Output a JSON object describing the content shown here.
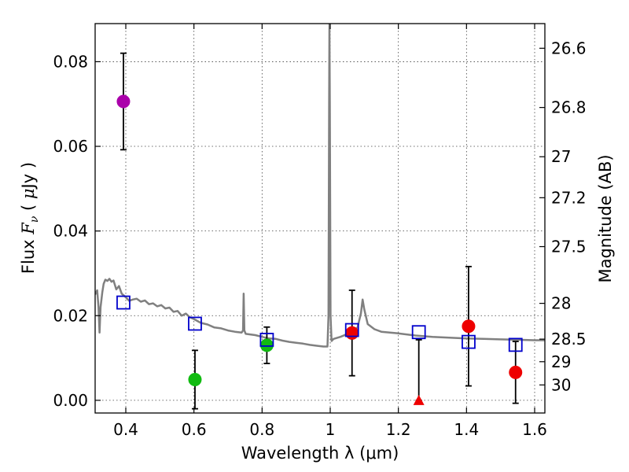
{
  "chart_data": {
    "type": "scatter",
    "xlabel": "Wavelength  λ (μm)",
    "ylabel": "Flux  F_ν  ( μJy )",
    "y2label": "Magnitude (AB)",
    "xlim": [
      0.31,
      1.63
    ],
    "ylim": [
      -0.003,
      0.089
    ],
    "x_ticks": [
      0.4,
      0.6,
      0.8,
      1.0,
      1.2,
      1.4,
      1.6
    ],
    "x_tick_labels": [
      "0.4",
      "0.6",
      "0.8",
      "1",
      "1.2",
      "1.4",
      "1.6"
    ],
    "y_ticks": [
      0.0,
      0.02,
      0.04,
      0.06,
      0.08
    ],
    "y_tick_labels": [
      "0.00",
      "0.02",
      "0.04",
      "0.06",
      "0.08"
    ],
    "y2_ticks": [
      {
        "label": "26.6",
        "mag": 26.6
      },
      {
        "label": "26.8",
        "mag": 26.8
      },
      {
        "label": "27",
        "mag": 27.0
      },
      {
        "label": "27.2",
        "mag": 27.2
      },
      {
        "label": "27.5",
        "mag": 27.5
      },
      {
        "label": "28",
        "mag": 28.0
      },
      {
        "label": "28.5",
        "mag": 28.5
      },
      {
        "label": "29",
        "mag": 29.0
      },
      {
        "label": "30",
        "mag": 30.0
      }
    ],
    "grid": true,
    "colors": {
      "magenta": "#aa00aa",
      "green": "#11bb11",
      "red": "#ee0000",
      "model": "#808080",
      "model_photometry": "#0000cc",
      "errorbar": "#000000"
    },
    "series": [
      {
        "name": "observed photometry",
        "points": [
          {
            "x": 0.393,
            "y": 0.0706,
            "err": 0.0114,
            "color": "#aa00aa"
          },
          {
            "x": 0.603,
            "y": 0.0049,
            "err": 0.0069,
            "color": "#11bb11"
          },
          {
            "x": 0.814,
            "y": 0.013,
            "err": 0.0043,
            "color": "#11bb11"
          },
          {
            "x": 1.064,
            "y": 0.0159,
            "err": 0.0101,
            "color": "#ee0000"
          },
          {
            "x": 1.406,
            "y": 0.0175,
            "err": 0.0141,
            "color": "#ee0000"
          },
          {
            "x": 1.544,
            "y": 0.0066,
            "err": 0.0073,
            "color": "#ee0000"
          }
        ]
      },
      {
        "name": "upper limit",
        "points": [
          {
            "x": 1.26,
            "y": 0.0,
            "err_up": 0.0143,
            "color": "#ee0000",
            "marker": "triangle"
          }
        ]
      },
      {
        "name": "model photometry",
        "points": [
          {
            "x": 0.393,
            "y": 0.0231
          },
          {
            "x": 0.603,
            "y": 0.0181
          },
          {
            "x": 0.814,
            "y": 0.0143
          },
          {
            "x": 1.064,
            "y": 0.0166
          },
          {
            "x": 1.26,
            "y": 0.0161
          },
          {
            "x": 1.406,
            "y": 0.0138
          },
          {
            "x": 1.544,
            "y": 0.0131
          }
        ]
      },
      {
        "name": "best-fit SED",
        "points": [
          [
            0.31,
            0.025
          ],
          [
            0.316,
            0.026
          ],
          [
            0.32,
            0.022
          ],
          [
            0.323,
            0.016
          ],
          [
            0.326,
            0.022
          ],
          [
            0.331,
            0.0255
          ],
          [
            0.335,
            0.0275
          ],
          [
            0.34,
            0.0285
          ],
          [
            0.346,
            0.0282
          ],
          [
            0.352,
            0.0287
          ],
          [
            0.358,
            0.028
          ],
          [
            0.364,
            0.0283
          ],
          [
            0.372,
            0.0262
          ],
          [
            0.38,
            0.027
          ],
          [
            0.388,
            0.0252
          ],
          [
            0.398,
            0.0245
          ],
          [
            0.41,
            0.0235
          ],
          [
            0.42,
            0.0238
          ],
          [
            0.432,
            0.024
          ],
          [
            0.444,
            0.0233
          ],
          [
            0.456,
            0.0236
          ],
          [
            0.468,
            0.0227
          ],
          [
            0.48,
            0.0229
          ],
          [
            0.492,
            0.0222
          ],
          [
            0.504,
            0.0225
          ],
          [
            0.516,
            0.0217
          ],
          [
            0.528,
            0.0219
          ],
          [
            0.54,
            0.0209
          ],
          [
            0.552,
            0.0211
          ],
          [
            0.564,
            0.02
          ],
          [
            0.576,
            0.0205
          ],
          [
            0.588,
            0.0196
          ],
          [
            0.6,
            0.0192
          ],
          [
            0.62,
            0.0183
          ],
          [
            0.64,
            0.0179
          ],
          [
            0.66,
            0.0172
          ],
          [
            0.68,
            0.017
          ],
          [
            0.7,
            0.0165
          ],
          [
            0.72,
            0.0162
          ],
          [
            0.74,
            0.016
          ],
          [
            0.744,
            0.0165
          ],
          [
            0.746,
            0.0252
          ],
          [
            0.748,
            0.0165
          ],
          [
            0.752,
            0.0157
          ],
          [
            0.78,
            0.0154
          ],
          [
            0.8,
            0.015
          ],
          [
            0.82,
            0.0146
          ],
          [
            0.84,
            0.0145
          ],
          [
            0.86,
            0.0141
          ],
          [
            0.88,
            0.0138
          ],
          [
            0.9,
            0.0136
          ],
          [
            0.92,
            0.0134
          ],
          [
            0.94,
            0.0131
          ],
          [
            0.96,
            0.0129
          ],
          [
            0.98,
            0.0127
          ],
          [
            0.992,
            0.0127
          ],
          [
            0.995,
            0.02
          ],
          [
            0.9968,
            0.07
          ],
          [
            0.9978,
            0.089
          ],
          [
            0.9988,
            0.07
          ],
          [
            1.001,
            0.02
          ],
          [
            1.004,
            0.014
          ],
          [
            1.01,
            0.0145
          ],
          [
            1.03,
            0.015
          ],
          [
            1.06,
            0.016
          ],
          [
            1.08,
            0.0172
          ],
          [
            1.09,
            0.0205
          ],
          [
            1.095,
            0.0238
          ],
          [
            1.1,
            0.0215
          ],
          [
            1.11,
            0.018
          ],
          [
            1.13,
            0.0168
          ],
          [
            1.15,
            0.0162
          ],
          [
            1.2,
            0.0158
          ],
          [
            1.25,
            0.0153
          ],
          [
            1.3,
            0.015
          ],
          [
            1.35,
            0.0148
          ],
          [
            1.4,
            0.0146
          ],
          [
            1.45,
            0.0145
          ],
          [
            1.5,
            0.0144
          ],
          [
            1.55,
            0.0143
          ],
          [
            1.6,
            0.0142
          ],
          [
            1.63,
            0.0142
          ]
        ]
      }
    ]
  }
}
